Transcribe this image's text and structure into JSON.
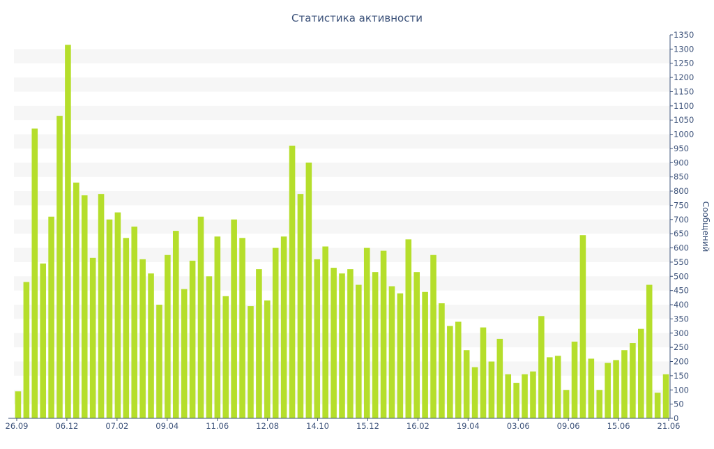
{
  "chart_data": {
    "type": "bar",
    "title": "Статистика активности",
    "xlabel": "",
    "ylabel": "Сообщений",
    "y_axis_side": "right",
    "ylim": [
      0,
      1350
    ],
    "y_tick_step": 50,
    "x_tick_labels": [
      "26.09",
      "06.12",
      "07.02",
      "09.04",
      "11.06",
      "12.08",
      "14.10",
      "15.12",
      "16.02",
      "19.04",
      "03.06",
      "09.06",
      "15.06",
      "21.06"
    ],
    "grid": "horizontal alternating bands",
    "series": [
      {
        "color": "#b5de2b",
        "values": [
          95,
          480,
          1020,
          545,
          710,
          1065,
          1315,
          830,
          785,
          565,
          790,
          700,
          725,
          635,
          675,
          560,
          510,
          400,
          575,
          660,
          455,
          555,
          710,
          500,
          640,
          430,
          700,
          635,
          395,
          525,
          415,
          600,
          640,
          960,
          790,
          900,
          560,
          605,
          530,
          510,
          525,
          470,
          600,
          515,
          590,
          465,
          440,
          630,
          515,
          445,
          575,
          405,
          325,
          340,
          240,
          180,
          320,
          200,
          280,
          155,
          125,
          155,
          165,
          360,
          215,
          220,
          100,
          270,
          645,
          210,
          100,
          195,
          205,
          240,
          265,
          315,
          470,
          90,
          155
        ]
      }
    ]
  }
}
